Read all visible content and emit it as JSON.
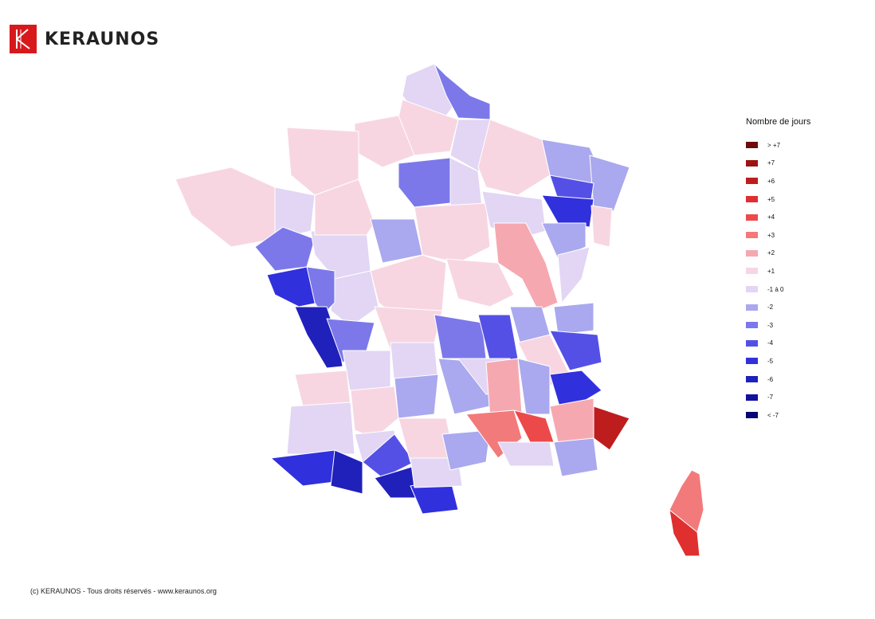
{
  "brand": {
    "name": "KERAUNOS",
    "color": "#d7191c"
  },
  "legend": {
    "title": "Nombre de jours",
    "items": [
      {
        "label": "> +7",
        "color": "#6e0b0b"
      },
      {
        "label": "+7",
        "color": "#9a1414"
      },
      {
        "label": "+6",
        "color": "#bd1d1d"
      },
      {
        "label": "+5",
        "color": "#e02f2f"
      },
      {
        "label": "+4",
        "color": "#ec4a4a"
      },
      {
        "label": "+3",
        "color": "#f27a7a"
      },
      {
        "label": "+2",
        "color": "#f6a8b0"
      },
      {
        "label": "+1",
        "color": "#f7d6e2"
      },
      {
        "label": "-1 à 0",
        "color": "#e2d6f4"
      },
      {
        "label": "-2",
        "color": "#aaa8ee"
      },
      {
        "label": "-3",
        "color": "#7c78ea"
      },
      {
        "label": "-4",
        "color": "#5450e6"
      },
      {
        "label": "-5",
        "color": "#3030dd"
      },
      {
        "label": "-6",
        "color": "#2020bb"
      },
      {
        "label": "-7",
        "color": "#12129a"
      },
      {
        "label": "< -7",
        "color": "#070770"
      }
    ]
  },
  "footer": "(c) KERAUNOS - Tous droits réservés - www.keraunos.org"
}
